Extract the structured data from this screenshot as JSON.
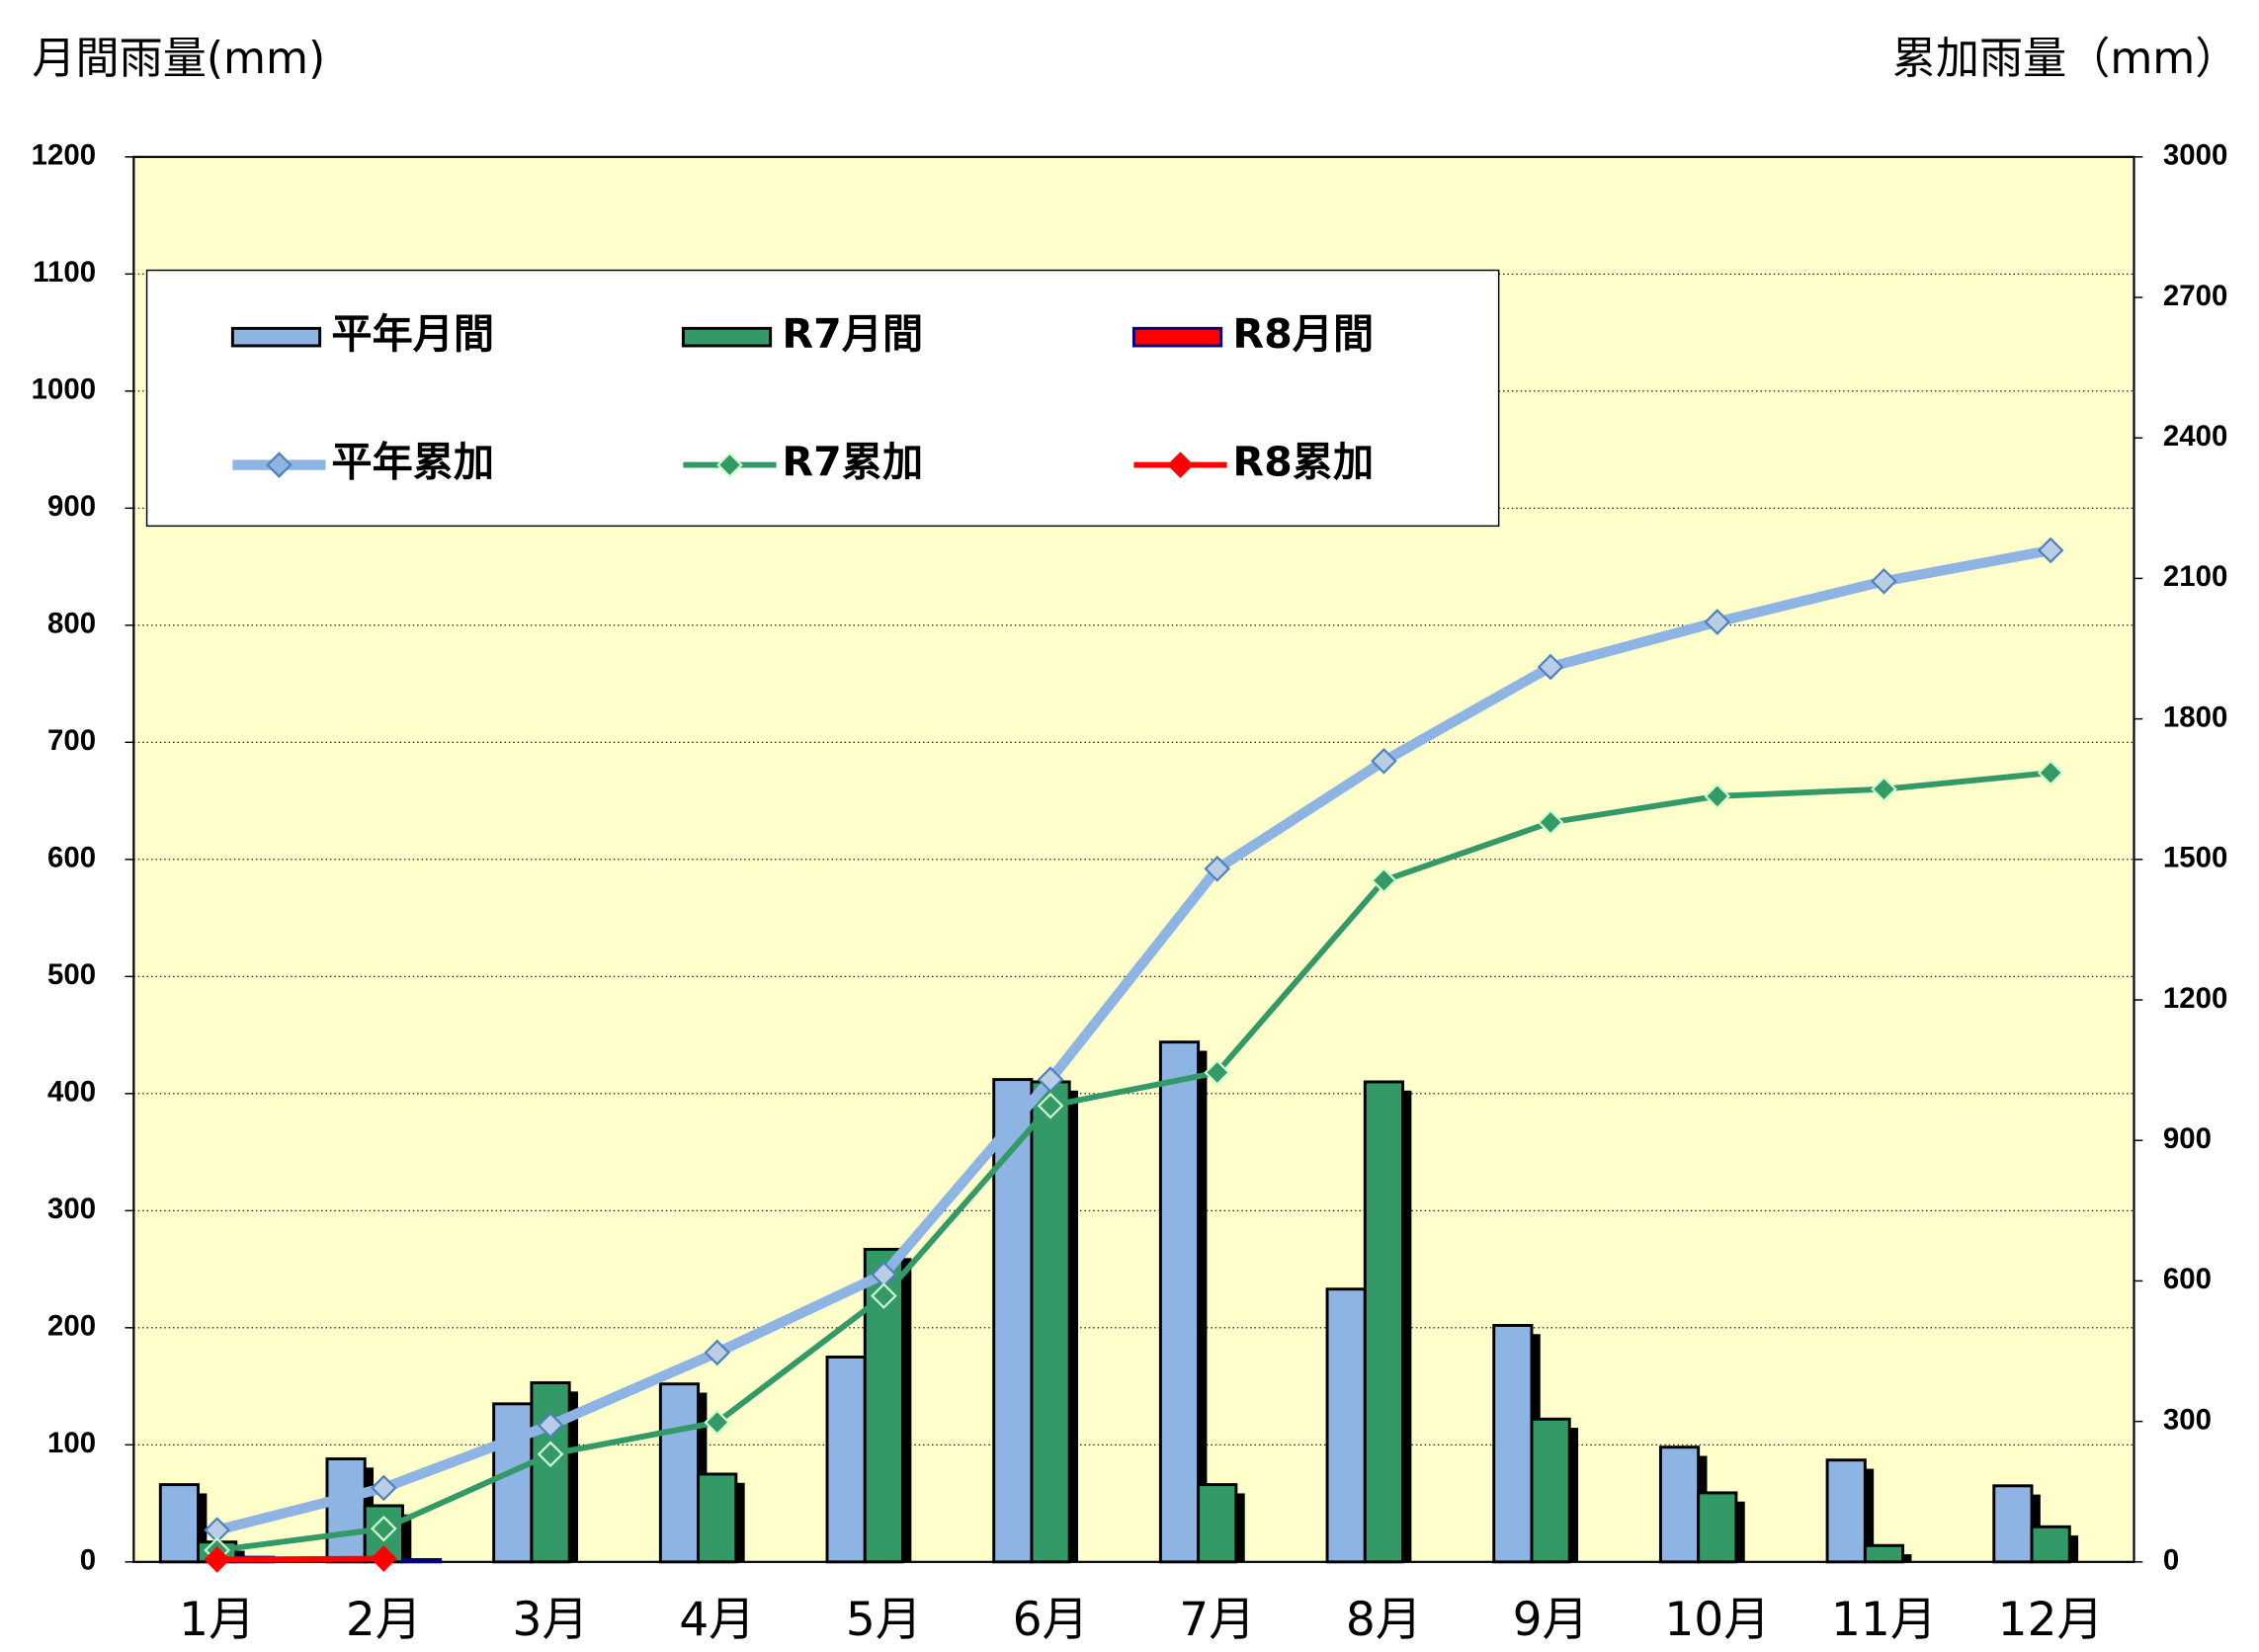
{
  "chart_data": {
    "type": "bar",
    "y_label": "月間雨量(mm)",
    "y2_label": "累加雨量（mm）",
    "categories": [
      "1月",
      "2月",
      "3月",
      "4月",
      "5月",
      "6月",
      "7月",
      "8月",
      "9月",
      "10月",
      "11月",
      "12月"
    ],
    "ylim": [
      0,
      1200
    ],
    "yticks": [
      0,
      100,
      200,
      300,
      400,
      500,
      600,
      700,
      800,
      900,
      1000,
      1100,
      1200
    ],
    "y2lim": [
      0,
      3000
    ],
    "y2ticks": [
      0,
      300,
      600,
      900,
      1200,
      1500,
      1800,
      2100,
      2400,
      2700,
      3000
    ],
    "grid": true,
    "plot_background": "#ffffcc",
    "legend": "upper left",
    "series": [
      {
        "name": "平年月間",
        "type": "bar",
        "color": "#8eb4e3",
        "values": [
          66,
          88,
          135,
          152,
          175,
          412,
          444,
          233,
          202,
          98,
          87,
          65
        ]
      },
      {
        "name": "R7月間",
        "type": "bar",
        "color": "#339966",
        "values": [
          17,
          48,
          153,
          75,
          267,
          410,
          66,
          410,
          122,
          59,
          14,
          30
        ]
      },
      {
        "name": "R8月間",
        "type": "bar",
        "color": "#ff0000",
        "edge_color": "#000080",
        "values": [
          4,
          2,
          null,
          null,
          null,
          null,
          null,
          null,
          null,
          null,
          null,
          null
        ]
      },
      {
        "name": "平年累加",
        "type": "line",
        "axis": "y2",
        "color": "#8eb4e3",
        "marker_color": "#4f81bd",
        "values": [
          68,
          158,
          292,
          447,
          614,
          1030,
          1480,
          1710,
          1911,
          2007,
          2094,
          2160
        ]
      },
      {
        "name": "R7累加",
        "type": "line",
        "axis": "y2",
        "color": "#339966",
        "marker_color": "#ccffcc",
        "values": [
          25,
          71,
          230,
          298,
          568,
          974,
          1045,
          1455,
          1579,
          1635,
          1650,
          1685
        ]
      },
      {
        "name": "R8累加",
        "type": "line",
        "axis": "y2",
        "color": "#ff0000",
        "marker_color": "#ff0000",
        "values": [
          5,
          7,
          null,
          null,
          null,
          null,
          null,
          null,
          null,
          null,
          null,
          null
        ]
      }
    ]
  }
}
